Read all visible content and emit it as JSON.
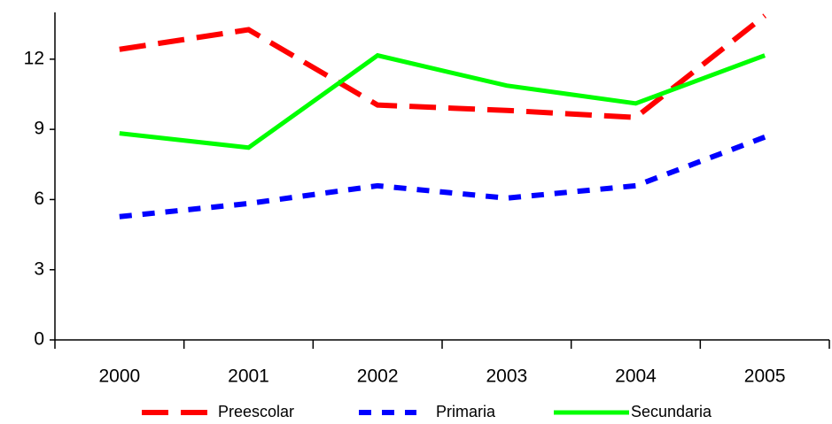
{
  "chart_data": {
    "type": "line",
    "categories": [
      "2000",
      "2001",
      "2002",
      "2003",
      "2004",
      "2005"
    ],
    "series": [
      {
        "name": "Preescolar",
        "color": "#ff0000",
        "values": [
          12.42,
          13.26,
          10.04,
          9.81,
          9.51,
          13.86
        ]
      },
      {
        "name": "Primaria",
        "color": "#0000ff",
        "values": [
          5.27,
          5.83,
          6.59,
          6.06,
          6.59,
          8.67
        ]
      },
      {
        "name": "Secundaria",
        "color": "#00ff00",
        "values": [
          8.83,
          8.22,
          12.16,
          10.87,
          10.11,
          12.16
        ]
      }
    ],
    "ylim": [
      0,
      14
    ],
    "yticks": [
      0,
      3,
      6,
      9,
      12
    ],
    "grid": false,
    "legend": "bottom"
  }
}
